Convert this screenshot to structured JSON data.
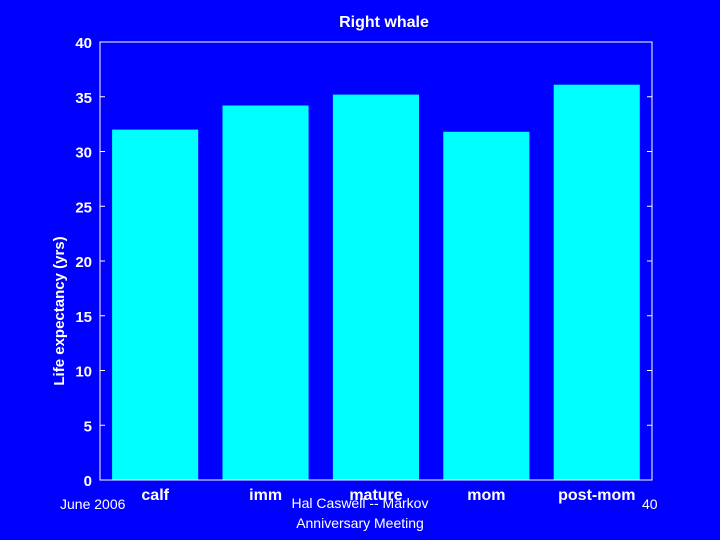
{
  "chart_data": {
    "type": "bar",
    "title": "Right whale",
    "xlabel": "",
    "ylabel": "Life expectancy (yrs)",
    "categories": [
      "calf",
      "imm",
      "mature",
      "mom",
      "post-mom"
    ],
    "values": [
      32.0,
      34.2,
      35.2,
      31.8,
      36.1
    ],
    "ylim": [
      0,
      40
    ],
    "yticks": [
      0,
      5,
      10,
      15,
      20,
      25,
      30,
      35,
      40
    ],
    "grid": false,
    "bar_color": "#00ffff",
    "background_color": "#0000ff",
    "axes_color": "#ffffff"
  },
  "footer": {
    "date": "June 2006",
    "center_line1": "Hal Caswell -- Markov",
    "center_line2": "Anniversary Meeting",
    "page": "40"
  }
}
